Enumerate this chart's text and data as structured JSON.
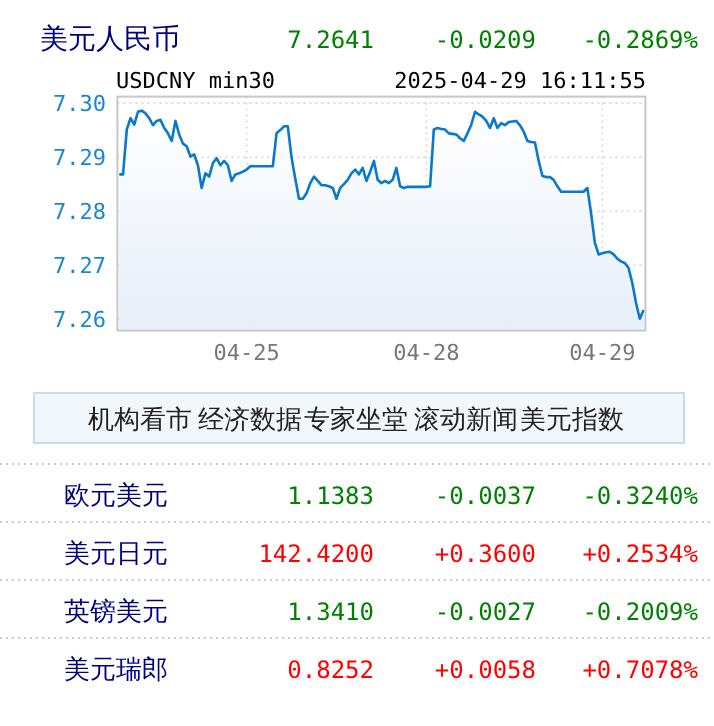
{
  "chart_data": {
    "type": "area",
    "title": "美元人民币",
    "subtitle": "USDCNY min30",
    "annotations": [
      "7.2641",
      "-0.0209",
      "-0.2869%",
      "2025-04-29 16:11:55",
      "机构看市",
      "经济数据",
      "专家坐堂",
      "滚动新闻",
      "美元指数",
      "欧元美元",
      "1.1383",
      "-0.0037",
      "-0.3240%",
      "美元日元",
      "142.4200",
      "+0.3600",
      "+0.2534%",
      "英镑美元",
      "1.3410",
      "-0.0027",
      "-0.2009%",
      "美元瑞郎",
      "0.8252",
      "+0.0058",
      "+0.7078%"
    ],
    "categories": [
      null,
      null,
      null,
      null,
      null,
      null,
      null,
      null,
      null,
      null,
      null,
      null,
      null,
      null,
      null,
      null,
      null,
      null,
      null,
      null,
      null,
      null,
      null,
      null,
      null,
      null,
      null,
      null,
      null,
      null,
      null,
      null,
      null,
      null,
      "04-25",
      null,
      null,
      null,
      null,
      null,
      null,
      null,
      null,
      null,
      null,
      null,
      null,
      null,
      null,
      null,
      null,
      null,
      null,
      null,
      null,
      null,
      null,
      null,
      null,
      null,
      null,
      null,
      null,
      null,
      null,
      null,
      null,
      null,
      null,
      null,
      null,
      null,
      null,
      null,
      null,
      null,
      null,
      null,
      null,
      null,
      null,
      null,
      "04-28",
      null,
      null,
      null,
      null,
      null,
      null,
      null,
      null,
      null,
      null,
      null,
      null,
      null,
      null,
      null,
      null,
      null,
      null,
      null,
      null,
      null,
      null,
      null,
      null,
      null,
      null,
      null,
      null,
      null,
      null,
      null,
      null,
      null,
      null,
      null,
      null,
      null,
      null,
      null,
      null,
      null,
      null,
      null,
      null,
      null,
      null,
      "04-29",
      null,
      null,
      null,
      null,
      null,
      null,
      null,
      null,
      null,
      null,
      null
    ],
    "series": [
      {
        "color": "#0a78cc",
        "values": [
          7.2868,
          7.2868,
          7.2951,
          7.2972,
          7.296,
          7.2984,
          7.2986,
          7.2981,
          7.2972,
          7.2959,
          7.2967,
          7.2969,
          7.2954,
          7.2944,
          7.293,
          7.2967,
          7.2942,
          7.2925,
          7.292,
          7.2901,
          7.2905,
          7.2885,
          7.2843,
          7.287,
          7.2864,
          7.2889,
          7.2898,
          7.2885,
          7.2893,
          7.2885,
          7.2856,
          7.2868,
          7.287,
          7.2873,
          7.2877,
          7.2883,
          7.2883,
          7.2883,
          7.2883,
          7.2883,
          7.2883,
          7.2883,
          7.2944,
          7.295,
          7.2957,
          7.2957,
          7.29,
          7.286,
          7.2823,
          7.2823,
          7.2833,
          7.2852,
          7.2864,
          7.2856,
          7.2848,
          7.2848,
          7.2846,
          7.2843,
          7.2823,
          7.2843,
          7.285,
          7.2858,
          7.287,
          7.2877,
          7.2868,
          7.288,
          7.2856,
          7.2873,
          7.2893,
          7.2858,
          7.2852,
          7.2856,
          7.2852,
          7.2858,
          7.288,
          7.2846,
          7.2843,
          7.2845,
          7.2845,
          7.2845,
          7.2845,
          7.2845,
          7.2845,
          7.2846,
          7.2951,
          7.2954,
          7.2952,
          7.2951,
          7.2944,
          7.2943,
          7.2942,
          7.2935,
          7.293,
          7.2944,
          7.296,
          7.2984,
          7.2979,
          7.2975,
          7.2967,
          7.2954,
          7.2972,
          7.2954,
          7.2963,
          7.2959,
          7.2965,
          7.2966,
          7.2967,
          7.2959,
          7.2947,
          7.293,
          7.2928,
          7.2927,
          7.2893,
          7.2865,
          7.2863,
          7.2863,
          7.2858,
          7.2846,
          7.2836,
          7.2836,
          7.2836,
          7.2836,
          7.2836,
          7.2836,
          7.2836,
          7.2843,
          7.2796,
          7.2742,
          7.272,
          7.2722,
          7.2724,
          7.2725,
          7.272,
          7.2712,
          7.2707,
          7.2704,
          7.2695,
          7.2667,
          7.263,
          7.2601,
          7.2617
        ]
      }
    ],
    "ylim": [
      7.2579,
      7.3012
    ],
    "yticks": [
      7.26,
      7.27,
      7.28,
      7.29,
      {
        "value": 7.3,
        "label": "7.30"
      }
    ],
    "grid": true,
    "marker": "none",
    "line_style": "solid"
  }
}
